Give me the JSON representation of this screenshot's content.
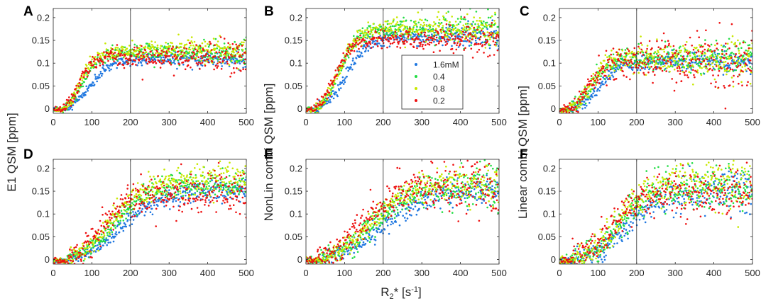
{
  "figure": {
    "ylabels": [
      "E1 QSM [ppm]",
      "NonLin combi QSM [ppm]",
      "Linear combi QSM [ppm]"
    ],
    "xlabel": "R2* [s-1]",
    "xlabel_parts": {
      "base": "R",
      "sub": "2",
      "star": "* [s",
      "sup": "-1",
      "end": "]"
    }
  },
  "chart_data": [
    {
      "panel": "A",
      "type": "scatter",
      "xlim": [
        0,
        500
      ],
      "ylim": [
        -0.01,
        0.22
      ],
      "xticks": [
        0,
        100,
        200,
        300,
        400,
        500
      ],
      "yticks": [
        0,
        0.05,
        0.1,
        0.15,
        0.2
      ],
      "ytick_labels": [
        "0",
        "0.05",
        "0.1",
        "0.15",
        "0.2"
      ],
      "vline_x": 200,
      "series": [
        {
          "name": "1.6mM",
          "color": "#1f77e0",
          "plateau": 0.12,
          "onset": 30,
          "halfway": 95,
          "width": 28,
          "noise": 0.006
        },
        {
          "name": "0.4",
          "color": "#22dd44",
          "plateau": 0.135,
          "onset": 25,
          "halfway": 75,
          "width": 22,
          "noise": 0.008
        },
        {
          "name": "0.8",
          "color": "#c8e800",
          "plateau": 0.14,
          "onset": 25,
          "halfway": 70,
          "width": 20,
          "noise": 0.009
        },
        {
          "name": "0.2",
          "color": "#ee1111",
          "plateau": 0.125,
          "onset": 25,
          "halfway": 65,
          "width": 18,
          "noise": 0.01
        }
      ]
    },
    {
      "panel": "B",
      "type": "scatter",
      "xlim": [
        0,
        500
      ],
      "ylim": [
        -0.01,
        0.22
      ],
      "xticks": [
        0,
        100,
        200,
        300,
        400,
        500
      ],
      "yticks": [
        0,
        0.05,
        0.1,
        0.15,
        0.2
      ],
      "ytick_labels": [
        "0",
        "0.05",
        "0.1",
        "0.15",
        "0.2"
      ],
      "vline_x": 200,
      "series": [
        {
          "name": "1.6mM",
          "color": "#1f77e0",
          "plateau": 0.17,
          "onset": 30,
          "halfway": 105,
          "width": 28,
          "noise": 0.008
        },
        {
          "name": "0.4",
          "color": "#22dd44",
          "plateau": 0.19,
          "onset": 25,
          "halfway": 85,
          "width": 24,
          "noise": 0.01
        },
        {
          "name": "0.8",
          "color": "#c8e800",
          "plateau": 0.19,
          "onset": 25,
          "halfway": 85,
          "width": 24,
          "noise": 0.01
        },
        {
          "name": "0.2",
          "color": "#ee1111",
          "plateau": 0.165,
          "onset": 20,
          "halfway": 75,
          "width": 22,
          "noise": 0.009
        }
      ]
    },
    {
      "panel": "C",
      "type": "scatter",
      "xlim": [
        0,
        500
      ],
      "ylim": [
        -0.01,
        0.22
      ],
      "xticks": [
        0,
        100,
        200,
        300,
        400,
        500
      ],
      "yticks": [
        0,
        0.05,
        0.1,
        0.15,
        0.2
      ],
      "ytick_labels": [
        "0",
        "0.05",
        "0.1",
        "0.15",
        "0.2"
      ],
      "vline_x": 200,
      "series": [
        {
          "name": "1.6mM",
          "color": "#1f77e0",
          "plateau": 0.11,
          "onset": 30,
          "halfway": 105,
          "width": 26,
          "noise": 0.008
        },
        {
          "name": "0.4",
          "color": "#22dd44",
          "plateau": 0.12,
          "onset": 25,
          "halfway": 85,
          "width": 22,
          "noise": 0.012
        },
        {
          "name": "0.8",
          "color": "#c8e800",
          "plateau": 0.12,
          "onset": 25,
          "halfway": 80,
          "width": 22,
          "noise": 0.014
        },
        {
          "name": "0.2",
          "color": "#ee1111",
          "plateau": 0.11,
          "onset": 25,
          "halfway": 75,
          "width": 20,
          "noise": 0.02
        }
      ]
    },
    {
      "panel": "D",
      "type": "scatter",
      "xlim": [
        0,
        500
      ],
      "ylim": [
        -0.01,
        0.22
      ],
      "xticks": [
        0,
        100,
        200,
        300,
        400,
        500
      ],
      "yticks": [
        0,
        0.05,
        0.1,
        0.15,
        0.2
      ],
      "ytick_labels": [
        "0",
        "0.05",
        "0.1",
        "0.15",
        "0.2"
      ],
      "vline_x": 200,
      "series": [
        {
          "name": "1.6mM",
          "color": "#1f77e0",
          "plateau": 0.16,
          "onset": 40,
          "halfway": 175,
          "width": 50,
          "noise": 0.008
        },
        {
          "name": "0.4",
          "color": "#22dd44",
          "plateau": 0.175,
          "onset": 35,
          "halfway": 155,
          "width": 45,
          "noise": 0.01
        },
        {
          "name": "0.8",
          "color": "#c8e800",
          "plateau": 0.19,
          "onset": 35,
          "halfway": 150,
          "width": 45,
          "noise": 0.012
        },
        {
          "name": "0.2",
          "color": "#ee1111",
          "plateau": 0.155,
          "onset": 30,
          "halfway": 125,
          "width": 40,
          "noise": 0.018
        }
      ]
    },
    {
      "panel": "E",
      "type": "scatter",
      "xlim": [
        0,
        500
      ],
      "ylim": [
        -0.01,
        0.22
      ],
      "xticks": [
        0,
        100,
        200,
        300,
        400,
        500
      ],
      "yticks": [
        0,
        0.05,
        0.1,
        0.15,
        0.2
      ],
      "ytick_labels": [
        "0",
        "0.05",
        "0.1",
        "0.15",
        "0.2"
      ],
      "vline_x": 200,
      "series": [
        {
          "name": "1.6mM",
          "color": "#1f77e0",
          "plateau": 0.16,
          "onset": 40,
          "halfway": 195,
          "width": 55,
          "noise": 0.012
        },
        {
          "name": "0.4",
          "color": "#22dd44",
          "plateau": 0.17,
          "onset": 35,
          "halfway": 170,
          "width": 50,
          "noise": 0.014
        },
        {
          "name": "0.8",
          "color": "#c8e800",
          "plateau": 0.18,
          "onset": 35,
          "halfway": 165,
          "width": 50,
          "noise": 0.014
        },
        {
          "name": "0.2",
          "color": "#ee1111",
          "plateau": 0.175,
          "onset": 30,
          "halfway": 140,
          "width": 45,
          "noise": 0.02
        }
      ]
    },
    {
      "panel": "F",
      "type": "scatter",
      "xlim": [
        0,
        500
      ],
      "ylim": [
        -0.01,
        0.22
      ],
      "xticks": [
        0,
        100,
        200,
        300,
        400,
        500
      ],
      "yticks": [
        0,
        0.05,
        0.1,
        0.15,
        0.2
      ],
      "ytick_labels": [
        "0",
        "0.05",
        "0.1",
        "0.15",
        "0.2"
      ],
      "vline_x": 200,
      "series": [
        {
          "name": "1.6mM",
          "color": "#1f77e0",
          "plateau": 0.16,
          "onset": 40,
          "halfway": 175,
          "width": 45,
          "noise": 0.014
        },
        {
          "name": "0.4",
          "color": "#22dd44",
          "plateau": 0.17,
          "onset": 35,
          "halfway": 155,
          "width": 42,
          "noise": 0.018
        },
        {
          "name": "0.8",
          "color": "#c8e800",
          "plateau": 0.18,
          "onset": 35,
          "halfway": 150,
          "width": 42,
          "noise": 0.018
        },
        {
          "name": "0.2",
          "color": "#ee1111",
          "plateau": 0.16,
          "onset": 30,
          "halfway": 135,
          "width": 40,
          "noise": 0.02
        }
      ]
    }
  ],
  "legend": {
    "panel": "B",
    "entries": [
      {
        "label": "1.6mM",
        "color": "#1f77e0"
      },
      {
        "label": "0.4",
        "color": "#22dd44"
      },
      {
        "label": "0.8",
        "color": "#c8e800"
      },
      {
        "label": "0.2",
        "color": "#ee1111"
      }
    ]
  }
}
